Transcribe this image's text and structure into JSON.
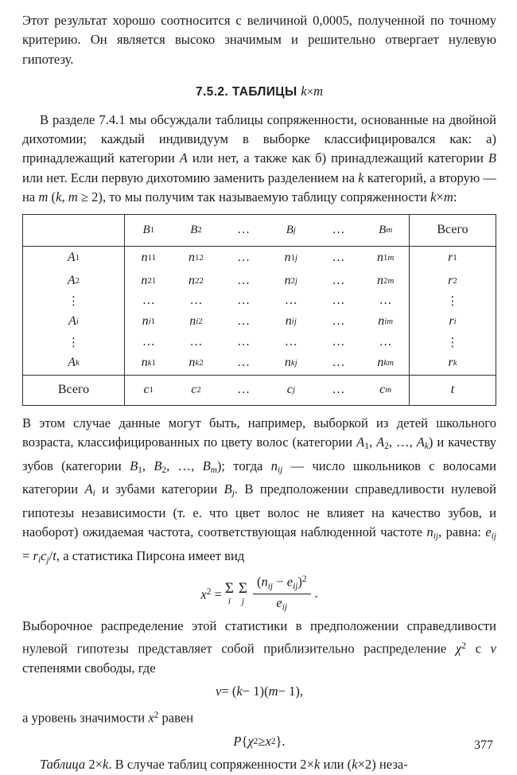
{
  "page": {
    "number": "377"
  },
  "intro": {
    "runs": [
      [
        "Этот результат хорошо соотносится с величиной 0,0005, полученной по точному критерию. Он является высоко значимым и решительно отвергает нулевую гипотезу.",
        ""
      ]
    ]
  },
  "heading": {
    "runs": [
      [
        "7.5.2. ТАБЛИЦЫ ",
        ""
      ],
      [
        "k",
        "mi"
      ],
      [
        "×",
        "mr"
      ],
      [
        "m",
        "mi"
      ]
    ]
  },
  "section_intro": {
    "runs": [
      [
        "В разделе 7.4.1 мы обсуждали таблицы сопряженности, основанные на двойной дихотомии; каждый индивидуум в выборке классифицировался как: а) принадлежащий категории ",
        ""
      ],
      [
        "A",
        "i"
      ],
      [
        " или нет, а также как б) принадлежащий категории ",
        ""
      ],
      [
        "B",
        "i"
      ],
      [
        " или нет. Если первую дихотомию заменить разделением на ",
        ""
      ],
      [
        "k",
        "i"
      ],
      [
        " категорий, а вторую — на ",
        ""
      ],
      [
        "m",
        "i"
      ],
      [
        " (",
        ""
      ],
      [
        "k",
        "i"
      ],
      [
        ", ",
        ""
      ],
      [
        "m",
        "i"
      ],
      [
        " ≥ 2), то мы получим так называемую таблицу сопряженности ",
        ""
      ],
      [
        "k",
        "i"
      ],
      [
        "×",
        ""
      ],
      [
        "m",
        "i"
      ],
      [
        ":",
        ""
      ]
    ]
  },
  "table": {
    "header": {
      "cells": [
        [],
        [
          [
            "B",
            "i"
          ],
          [
            "1",
            "sub"
          ]
        ],
        [
          [
            "B",
            "i"
          ],
          [
            "2",
            "sub"
          ]
        ],
        [
          [
            "…",
            ""
          ]
        ],
        [
          [
            "B",
            "i"
          ],
          [
            "j",
            "isub"
          ]
        ],
        [
          [
            "…",
            ""
          ]
        ],
        [
          [
            "B",
            "i"
          ],
          [
            "m",
            "isub"
          ]
        ],
        [
          [
            "Всего",
            ""
          ]
        ]
      ]
    },
    "rows": [
      {
        "cells": [
          [
            [
              "A",
              "i"
            ],
            [
              "1",
              "sub"
            ]
          ],
          [
            [
              "n",
              "i"
            ],
            [
              "11",
              "sub"
            ]
          ],
          [
            [
              "n",
              "i"
            ],
            [
              "12",
              "sub"
            ]
          ],
          [
            [
              "…",
              ""
            ]
          ],
          [
            [
              "n",
              "i"
            ],
            [
              "1",
              "sub"
            ],
            [
              "j",
              "isub"
            ]
          ],
          [
            [
              "…",
              ""
            ]
          ],
          [
            [
              "n",
              "i"
            ],
            [
              "1",
              "sub"
            ],
            [
              "m",
              "isub"
            ]
          ],
          [
            [
              "r",
              "i"
            ],
            [
              "1",
              "sub"
            ]
          ]
        ]
      },
      {
        "cells": [
          [
            [
              "A",
              "i"
            ],
            [
              "2",
              "sub"
            ]
          ],
          [
            [
              "n",
              "i"
            ],
            [
              "21",
              "sub"
            ]
          ],
          [
            [
              "n",
              "i"
            ],
            [
              "22",
              "sub"
            ]
          ],
          [
            [
              "…",
              ""
            ]
          ],
          [
            [
              "n",
              "i"
            ],
            [
              "2",
              "sub"
            ],
            [
              "j",
              "isub"
            ]
          ],
          [
            [
              "…",
              ""
            ]
          ],
          [
            [
              "n",
              "i"
            ],
            [
              "2",
              "sub"
            ],
            [
              "m",
              "isub"
            ]
          ],
          [
            [
              "r",
              "i"
            ],
            [
              "2",
              "sub"
            ]
          ]
        ]
      },
      {
        "cells": [
          [
            [
              "⋮",
              "vd"
            ]
          ],
          [
            [
              "…",
              ""
            ]
          ],
          [
            [
              "…",
              ""
            ]
          ],
          [
            [
              "…",
              ""
            ]
          ],
          [
            [
              "…",
              ""
            ]
          ],
          [
            [
              "…",
              ""
            ]
          ],
          [
            [
              "…",
              ""
            ]
          ],
          [
            [
              "⋮",
              "vd"
            ]
          ]
        ]
      },
      {
        "cells": [
          [
            [
              "A",
              "i"
            ],
            [
              "i",
              "isub"
            ]
          ],
          [
            [
              "n",
              "i"
            ],
            [
              "i",
              "isub"
            ],
            [
              "1",
              "sub"
            ]
          ],
          [
            [
              "n",
              "i"
            ],
            [
              "i",
              "isub"
            ],
            [
              "2",
              "sub"
            ]
          ],
          [
            [
              "…",
              ""
            ]
          ],
          [
            [
              "n",
              "i"
            ],
            [
              "ij",
              "isub"
            ]
          ],
          [
            [
              "…",
              ""
            ]
          ],
          [
            [
              "n",
              "i"
            ],
            [
              "im",
              "isub"
            ]
          ],
          [
            [
              "r",
              "i"
            ],
            [
              "i",
              "isub"
            ]
          ]
        ]
      },
      {
        "cells": [
          [
            [
              "⋮",
              "vd"
            ]
          ],
          [
            [
              "…",
              ""
            ]
          ],
          [
            [
              "…",
              ""
            ]
          ],
          [
            [
              "…",
              ""
            ]
          ],
          [
            [
              "…",
              ""
            ]
          ],
          [
            [
              "…",
              ""
            ]
          ],
          [
            [
              "…",
              ""
            ]
          ],
          [
            [
              "⋮",
              "vd"
            ]
          ]
        ]
      },
      {
        "cells": [
          [
            [
              "A",
              "i"
            ],
            [
              "k",
              "isub"
            ]
          ],
          [
            [
              "n",
              "i"
            ],
            [
              "k",
              "isub"
            ],
            [
              "1",
              "sub"
            ]
          ],
          [
            [
              "n",
              "i"
            ],
            [
              "k",
              "isub"
            ],
            [
              "2",
              "sub"
            ]
          ],
          [
            [
              "…",
              ""
            ]
          ],
          [
            [
              "n",
              "i"
            ],
            [
              "kj",
              "isub"
            ]
          ],
          [
            [
              "…",
              ""
            ]
          ],
          [
            [
              "n",
              "i"
            ],
            [
              "km",
              "isub"
            ]
          ],
          [
            [
              "r",
              "i"
            ],
            [
              "k",
              "isub"
            ]
          ]
        ]
      }
    ],
    "footer": {
      "cells": [
        [
          [
            "Всего",
            ""
          ]
        ],
        [
          [
            "c",
            "i"
          ],
          [
            "1",
            "sub"
          ]
        ],
        [
          [
            "c",
            "i"
          ],
          [
            "2",
            "sub"
          ]
        ],
        [
          [
            "…",
            ""
          ]
        ],
        [
          [
            "c",
            "i"
          ],
          [
            "j",
            "isub"
          ]
        ],
        [
          [
            "…",
            ""
          ]
        ],
        [
          [
            "c",
            "i"
          ],
          [
            "m",
            "isub"
          ]
        ],
        [
          [
            "t",
            "i"
          ]
        ]
      ]
    }
  },
  "example": {
    "runs": [
      [
        "В этом случае данные могут быть, например, выборкой из детей школьного возраста, классифицированных по цвету волос (категории ",
        ""
      ],
      [
        "A",
        "i"
      ],
      [
        "1",
        "sub"
      ],
      [
        ", ",
        ""
      ],
      [
        "A",
        "i"
      ],
      [
        "2",
        "sub"
      ],
      [
        ", …, ",
        ""
      ],
      [
        "A",
        "i"
      ],
      [
        "k",
        "isub"
      ],
      [
        ") и качеству зубов (категории ",
        ""
      ],
      [
        "B",
        "i"
      ],
      [
        "1",
        "sub"
      ],
      [
        ", ",
        ""
      ],
      [
        "B",
        "i"
      ],
      [
        "2",
        "sub"
      ],
      [
        ", …, ",
        ""
      ],
      [
        "B",
        "i"
      ],
      [
        "m",
        "isub"
      ],
      [
        "); тогда ",
        ""
      ],
      [
        "n",
        "i"
      ],
      [
        "ij",
        "isub"
      ],
      [
        " — число школьников с волосами категории ",
        ""
      ],
      [
        "A",
        "i"
      ],
      [
        "i",
        "isub"
      ],
      [
        " и зубами категории ",
        ""
      ],
      [
        "B",
        "i"
      ],
      [
        "j",
        "isub"
      ],
      [
        ". В предположении справедливости нулевой гипотезы независимости (т. е. что цвет волос не влияет на качество зубов, и наоборот) ожидаемая частота, соответствующая наблюденной частоте ",
        ""
      ],
      [
        "n",
        "i"
      ],
      [
        "ij",
        "isub"
      ],
      [
        ", равна: ",
        ""
      ],
      [
        "e",
        "i"
      ],
      [
        "ij",
        "isub"
      ],
      [
        " = ",
        ""
      ],
      [
        "r",
        "i"
      ],
      [
        "i",
        "isub"
      ],
      [
        "c",
        "i"
      ],
      [
        "j",
        "isub"
      ],
      [
        "/",
        ""
      ],
      [
        "t",
        "i"
      ],
      [
        ", а статистика Пирсона имеет вид",
        ""
      ]
    ]
  },
  "formula_chi": {
    "lhs": [
      [
        "x",
        "i"
      ],
      [
        "2",
        "sup"
      ],
      [
        " = ",
        ""
      ]
    ],
    "sum_i": {
      "op": "Σ",
      "limit": "i"
    },
    "sum_j": {
      "op": "Σ",
      "limit": "j"
    },
    "num": [
      [
        "(",
        ""
      ],
      [
        "n",
        "i"
      ],
      [
        "ij",
        "isub"
      ],
      [
        " − ",
        ""
      ],
      [
        "e",
        "i"
      ],
      [
        "ij",
        "isub"
      ],
      [
        ")",
        ""
      ],
      [
        "2",
        "sup"
      ]
    ],
    "den": [
      [
        "e",
        "i"
      ],
      [
        "ij",
        "isub"
      ]
    ],
    "tail": [
      [
        ".",
        ""
      ]
    ]
  },
  "distribution": {
    "runs": [
      [
        "Выборочное распределение этой статистики в предположении справедливости нулевой гипотезы представляет собой приблизительно распределение ",
        ""
      ],
      [
        "χ",
        "i"
      ],
      [
        "2",
        "sup"
      ],
      [
        " с ",
        ""
      ],
      [
        "ν",
        "i"
      ],
      [
        " степенями свободы, где",
        ""
      ]
    ]
  },
  "formula_nu": {
    "runs": [
      [
        "ν",
        "i"
      ],
      [
        " = (",
        ""
      ],
      [
        "k",
        "i"
      ],
      [
        " − 1)(",
        ""
      ],
      [
        "m",
        "i"
      ],
      [
        " − 1),",
        ""
      ]
    ]
  },
  "significance": {
    "runs": [
      [
        "а уровень значимости ",
        ""
      ],
      [
        "x",
        "i"
      ],
      [
        "2",
        "sup"
      ],
      [
        " равен",
        ""
      ]
    ]
  },
  "formula_p": {
    "runs": [
      [
        "P",
        "i"
      ],
      [
        " { ",
        ""
      ],
      [
        "χ",
        "i"
      ],
      [
        "2",
        "sup"
      ],
      [
        " ≥ ",
        ""
      ],
      [
        "x",
        "i"
      ],
      [
        "2",
        "sup"
      ],
      [
        " }.",
        ""
      ]
    ]
  },
  "closing": {
    "runs": [
      [
        "Таблица",
        "i"
      ],
      [
        " 2×",
        ""
      ],
      [
        "k",
        "i"
      ],
      [
        ". В случае таблиц сопряженности 2×",
        ""
      ],
      [
        "k",
        "i"
      ],
      [
        " или (",
        ""
      ],
      [
        "k",
        "i"
      ],
      [
        "×2) неза-",
        ""
      ]
    ]
  }
}
